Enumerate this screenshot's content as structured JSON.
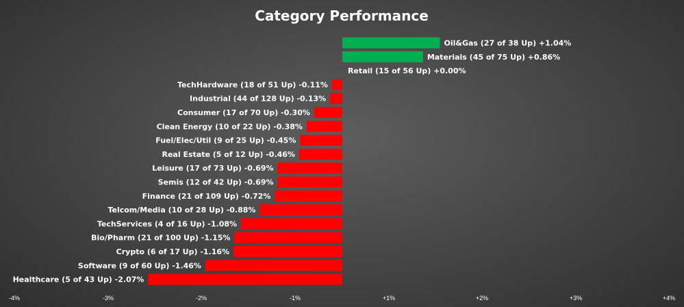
{
  "chart_data": {
    "type": "bar",
    "orientation": "horizontal",
    "title": "Category Performance",
    "xlabel": "",
    "ylabel": "",
    "xlim": [
      -4,
      4
    ],
    "grid": false,
    "legend": "none",
    "x_ticks": [
      "-4%",
      "-3%",
      "-2%",
      "-1%",
      "+1%",
      "+2%",
      "+3%",
      "+4%"
    ],
    "categories": [
      "Oil&Gas (27 of 38 Up) +1.04%",
      "Materials (45 of 75 Up) +0.86%",
      "Retail (15 of 56 Up) +0.00%",
      "TechHardware (18 of 51 Up) -0.11%",
      "Industrial (44 of 128 Up) -0.13%",
      "Consumer (17 of 70 Up) -0.30%",
      "Clean Energy (10 of 22 Up) -0.38%",
      "Fuel/Elec/Util (9 of 25 Up) -0.45%",
      "Real Estate (5 of 12 Up) -0.46%",
      "Leisure (17 of 73 Up) -0.69%",
      "Semis (12 of 42 Up) -0.69%",
      "Finance (21 of 109 Up) -0.72%",
      "Telcom/Media (10 of 28 Up) -0.88%",
      "TechServices (4 of 16 Up) -1.08%",
      "Bio/Pharm (21 of 100 Up) -1.15%",
      "Crypto (6 of 17 Up) -1.16%",
      "Software (9 of 60 Up) -1.46%",
      "Healthcare (5 of 43 Up) -2.07%"
    ],
    "values": [
      1.04,
      0.86,
      0.0,
      -0.11,
      -0.13,
      -0.3,
      -0.38,
      -0.45,
      -0.46,
      -0.69,
      -0.69,
      -0.72,
      -0.88,
      -1.08,
      -1.15,
      -1.16,
      -1.46,
      -2.07
    ],
    "colors": {
      "positive": "#00b050",
      "negative": "#ff0000",
      "text": "#ffffff"
    }
  }
}
